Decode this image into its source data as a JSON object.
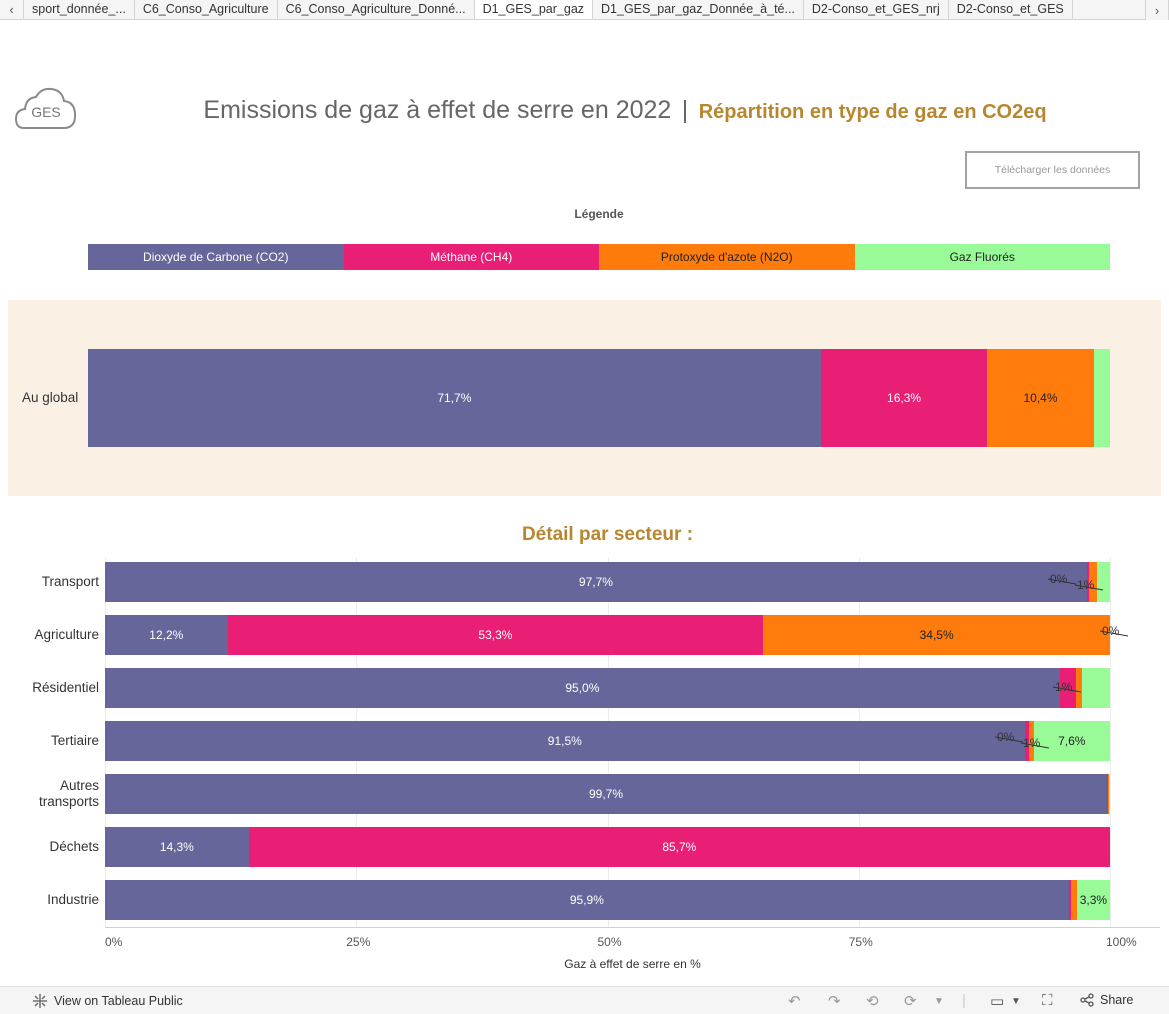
{
  "tabs": [
    {
      "label": "sport_donnée_...",
      "active": false
    },
    {
      "label": "C6_Conso_Agriculture",
      "active": false
    },
    {
      "label": "C6_Conso_Agriculture_Donné...",
      "active": false
    },
    {
      "label": "D1_GES_par_gaz",
      "active": true
    },
    {
      "label": "D1_GES_par_gaz_Donnée_à_té...",
      "active": false
    },
    {
      "label": "D2-Conso_et_GES_nrj",
      "active": false
    },
    {
      "label": "D2-Conso_et_GES",
      "active": false
    }
  ],
  "tab_nav": {
    "prev_icon": "‹",
    "next_icon": "›"
  },
  "logo": {
    "text": "GES",
    "icon": "cloud-icon"
  },
  "header": {
    "title": "Emissions de gaz à effet de serre en 2022",
    "separator": "|",
    "subtitle": "Répartition en type de gaz en CO2eq"
  },
  "download_button": {
    "label": "Télécharger les données"
  },
  "legend": {
    "title": "Légende",
    "items": [
      {
        "label": "Dioxyde de Carbone (CO2)",
        "color": "#66669a",
        "text_color": "#ffffff"
      },
      {
        "label": "Méthane (CH4)",
        "color": "#e91e75",
        "text_color": "#ffffff"
      },
      {
        "label": "Protoxyde d'azote (N2O)",
        "color": "#ff7b0c",
        "text_color": "#222222"
      },
      {
        "label": "Gaz Fluorés",
        "color": "#98fb98",
        "text_color": "#222222"
      }
    ]
  },
  "chart_data": [
    {
      "type": "bar",
      "orientation": "horizontal",
      "stacked": "percent",
      "categories": [
        "Au global"
      ],
      "series": [
        {
          "name": "Dioxyde de Carbone (CO2)",
          "values": [
            71.7
          ],
          "labels": [
            "71,7%"
          ]
        },
        {
          "name": "Méthane (CH4)",
          "values": [
            16.3
          ],
          "labels": [
            "16,3%"
          ]
        },
        {
          "name": "Protoxyde d'azote (N2O)",
          "values": [
            10.4
          ],
          "labels": [
            "10,4%"
          ]
        },
        {
          "name": "Gaz Fluorés",
          "values": [
            1.6
          ],
          "labels": [
            ""
          ]
        }
      ]
    },
    {
      "type": "bar",
      "orientation": "horizontal",
      "stacked": "percent",
      "title": "Détail par secteur :",
      "xlabel": "Gaz à effet de serre en %",
      "xlim": [
        0,
        100
      ],
      "xticks": [
        "0%",
        "25%",
        "50%",
        "75%",
        "100%"
      ],
      "grid": true,
      "categories": [
        "Transport",
        "Agriculture",
        "Résidentiel",
        "Tertiaire",
        "Autres transports",
        "Déchets",
        "Industrie"
      ],
      "series": [
        {
          "name": "Dioxyde de Carbone (CO2)",
          "values": [
            97.7,
            12.2,
            95.0,
            91.5,
            99.7,
            14.3,
            95.9
          ],
          "labels": [
            "97,7%",
            "12,2%",
            "95,0%",
            "91,5%",
            "99,7%",
            "14,3%",
            "95,9%"
          ]
        },
        {
          "name": "Méthane (CH4)",
          "values": [
            0.2,
            53.3,
            1.6,
            0.4,
            0.1,
            85.7,
            0.2
          ],
          "labels": [
            "",
            "53,3%",
            "",
            "",
            "",
            "85,7%",
            ""
          ]
        },
        {
          "name": "Protoxyde d'azote (N2O)",
          "values": [
            0.8,
            34.5,
            0.6,
            0.5,
            0.1,
            0.0,
            0.6
          ],
          "labels": [
            "",
            "34,5%",
            "",
            "",
            "",
            "",
            ""
          ]
        },
        {
          "name": "Gaz Fluorés",
          "values": [
            1.3,
            0.0,
            2.8,
            7.6,
            0.1,
            0.0,
            3.3
          ],
          "labels": [
            "",
            "",
            "",
            "7,6%",
            "",
            "",
            "3,3%"
          ]
        }
      ],
      "annotations": [
        {
          "category": "Transport",
          "texts": [
            "0%",
            "1%"
          ]
        },
        {
          "category": "Agriculture",
          "texts": [
            "0%"
          ]
        },
        {
          "category": "Résidentiel",
          "texts": [
            "1%"
          ]
        },
        {
          "category": "Tertiaire",
          "texts": [
            "0%",
            "1%"
          ]
        }
      ]
    }
  ],
  "bottom_bar": {
    "view_label": "View on Tableau Public",
    "share_label": "Share"
  }
}
